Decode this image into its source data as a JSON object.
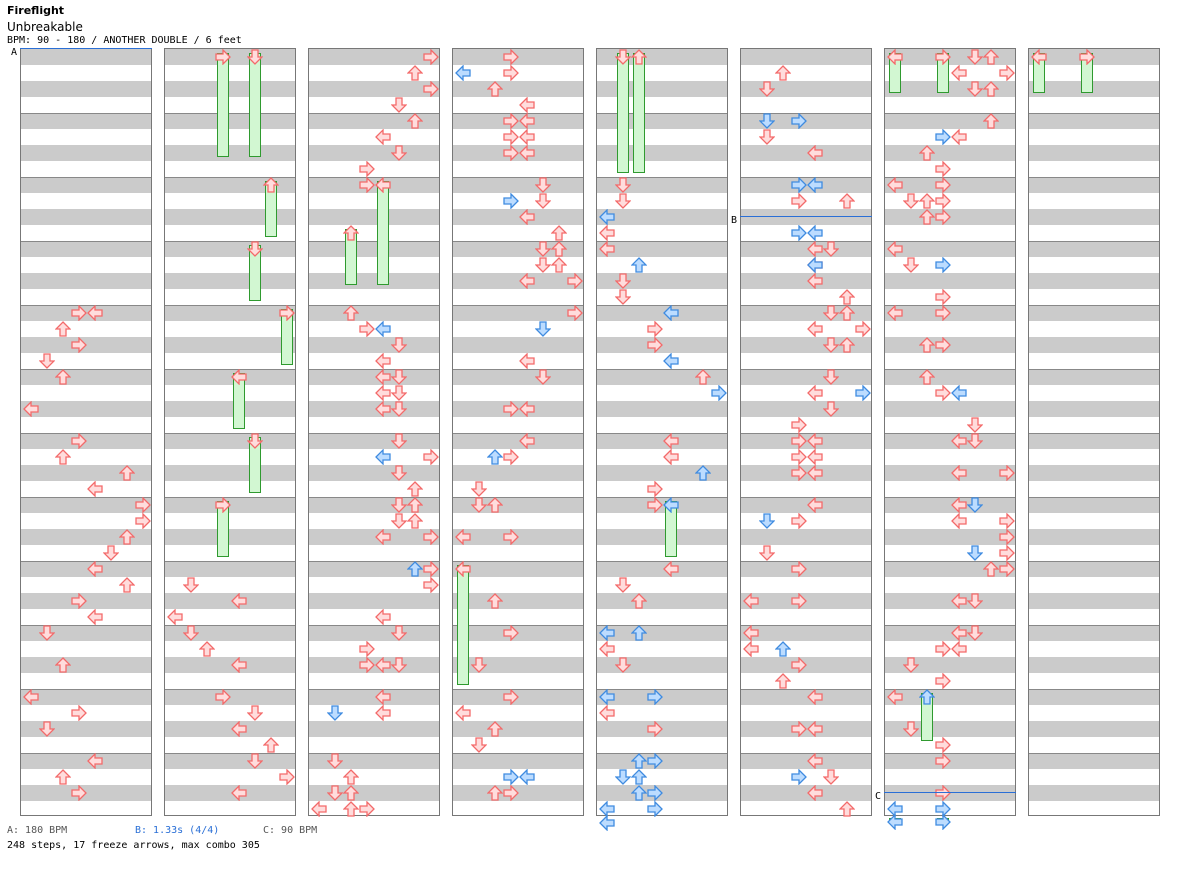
{
  "song": {
    "title": "Fireflight",
    "subtitle": "Unbreakable",
    "info": "BPM: 90 - 180 / ANOTHER DOUBLE / 6 feet"
  },
  "legend": {
    "a": "A: 180 BPM",
    "b": "B: 1.33s (4/4)",
    "c": "C: 90 BPM"
  },
  "stats": "248 steps, 17 freeze arrows, max combo 305",
  "markers": [
    {
      "label": "A",
      "column": 0,
      "beat": 0
    },
    {
      "label": "B",
      "column": 5,
      "beat": 10.5
    },
    {
      "label": "C",
      "column": 6,
      "beat": 46.5
    }
  ],
  "colors": {
    "note": "#f36a6a",
    "note_fill": "#ffdcdc",
    "mine": "#3f8be0",
    "mine_fill": "#bcdcff",
    "hold": "#2f9a2f",
    "hold_fill": "#d2f7d2"
  },
  "columns": [
    {
      "notes": [
        {
          "l": 3,
          "b": 16
        },
        {
          "l": 4,
          "b": 16
        },
        {
          "l": 2,
          "b": 17
        },
        {
          "l": 3,
          "b": 18
        },
        {
          "l": 1,
          "b": 19
        },
        {
          "l": 2,
          "b": 20
        },
        {
          "l": 0,
          "b": 22
        },
        {
          "l": 3,
          "b": 24
        },
        {
          "l": 2,
          "b": 25
        },
        {
          "l": 6,
          "b": 26
        },
        {
          "l": 4,
          "b": 27
        },
        {
          "l": 7,
          "b": 28
        },
        {
          "l": 7,
          "b": 29
        },
        {
          "l": 6,
          "b": 30
        },
        {
          "l": 5,
          "b": 31
        },
        {
          "l": 4,
          "b": 32
        },
        {
          "l": 6,
          "b": 33
        },
        {
          "l": 3,
          "b": 34
        },
        {
          "l": 4,
          "b": 35
        },
        {
          "l": 1,
          "b": 36
        },
        {
          "l": 2,
          "b": 38
        },
        {
          "l": 0,
          "b": 40
        },
        {
          "l": 3,
          "b": 41
        },
        {
          "l": 1,
          "b": 42
        },
        {
          "l": 4,
          "b": 44
        },
        {
          "l": 2,
          "b": 45
        },
        {
          "l": 3,
          "b": 46
        }
      ],
      "holds": []
    },
    {
      "notes": [
        {
          "l": 1,
          "b": 33
        },
        {
          "l": 4,
          "b": 34
        },
        {
          "l": 0,
          "b": 35
        },
        {
          "l": 1,
          "b": 36
        },
        {
          "l": 2,
          "b": 37
        },
        {
          "l": 4,
          "b": 38
        },
        {
          "l": 3,
          "b": 40
        },
        {
          "l": 5,
          "b": 41
        },
        {
          "l": 4,
          "b": 42
        },
        {
          "l": 6,
          "b": 43
        },
        {
          "l": 5,
          "b": 44
        },
        {
          "l": 7,
          "b": 45
        },
        {
          "l": 4,
          "b": 46
        }
      ],
      "holds": [
        {
          "l": 3,
          "b0": 0,
          "b1": 6.5,
          "c": "red"
        },
        {
          "l": 5,
          "b0": 0,
          "b1": 6.5,
          "c": "red"
        },
        {
          "l": 6,
          "b0": 8,
          "b1": 11.5,
          "c": "red"
        },
        {
          "l": 5,
          "b0": 12,
          "b1": 15.5,
          "c": "red"
        },
        {
          "l": 7,
          "b0": 16,
          "b1": 19.5,
          "c": "red"
        },
        {
          "l": 4,
          "b0": 20,
          "b1": 23.5,
          "c": "red"
        },
        {
          "l": 5,
          "b0": 24,
          "b1": 27.5,
          "c": "red"
        },
        {
          "l": 3,
          "b0": 28,
          "b1": 31.5,
          "c": "red"
        }
      ]
    },
    {
      "notes": [
        {
          "l": 7,
          "b": 0
        },
        {
          "l": 6,
          "b": 1
        },
        {
          "l": 7,
          "b": 2
        },
        {
          "l": 5,
          "b": 3
        },
        {
          "l": 6,
          "b": 4
        },
        {
          "l": 4,
          "b": 5
        },
        {
          "l": 5,
          "b": 6
        },
        {
          "l": 3,
          "b": 7
        },
        {
          "l": 3,
          "b": 8
        },
        {
          "l": 2,
          "b": 16
        },
        {
          "l": 3,
          "b": 17
        },
        {
          "l": 5,
          "b": 18
        },
        {
          "l": 4,
          "b": 19
        },
        {
          "l": 4,
          "b": 20
        },
        {
          "l": 5,
          "b": 20
        },
        {
          "l": 4,
          "b": 21
        },
        {
          "l": 5,
          "b": 21
        },
        {
          "l": 4,
          "b": 22
        },
        {
          "l": 5,
          "b": 22
        },
        {
          "l": 5,
          "b": 24
        },
        {
          "l": 7,
          "b": 25
        },
        {
          "l": 5,
          "b": 26
        },
        {
          "l": 6,
          "b": 27
        },
        {
          "l": 5,
          "b": 28
        },
        {
          "l": 6,
          "b": 28
        },
        {
          "l": 5,
          "b": 29
        },
        {
          "l": 6,
          "b": 29
        },
        {
          "l": 4,
          "b": 30
        },
        {
          "l": 7,
          "b": 30
        },
        {
          "l": 7,
          "b": 32
        },
        {
          "l": 7,
          "b": 33
        },
        {
          "l": 4,
          "b": 35
        },
        {
          "l": 5,
          "b": 36
        },
        {
          "l": 3,
          "b": 37
        },
        {
          "l": 3,
          "b": 38
        },
        {
          "l": 4,
          "b": 38
        },
        {
          "l": 5,
          "b": 38
        },
        {
          "l": 4,
          "b": 40
        },
        {
          "l": 4,
          "b": 41
        },
        {
          "l": 1,
          "b": 44
        },
        {
          "l": 2,
          "b": 45
        },
        {
          "l": 1,
          "b": 46
        },
        {
          "l": 2,
          "b": 46
        },
        {
          "l": 2,
          "b": 47
        },
        {
          "l": 0,
          "b": 47
        },
        {
          "l": 3,
          "b": 47
        }
      ],
      "mines": [
        {
          "l": 4,
          "b": 17
        },
        {
          "l": 4,
          "b": 25
        },
        {
          "l": 6,
          "b": 32
        },
        {
          "l": 1,
          "b": 41
        }
      ],
      "holds": [
        {
          "l": 4,
          "b0": 8,
          "b1": 14.5,
          "c": "red"
        },
        {
          "l": 2,
          "b0": 11,
          "b1": 14.5,
          "c": "red"
        }
      ]
    },
    {
      "notes": [
        {
          "l": 3,
          "b": 0
        },
        {
          "l": 3,
          "b": 1
        },
        {
          "l": 2,
          "b": 2
        },
        {
          "l": 4,
          "b": 3
        },
        {
          "l": 3,
          "b": 4
        },
        {
          "l": 4,
          "b": 4
        },
        {
          "l": 3,
          "b": 5
        },
        {
          "l": 4,
          "b": 5
        },
        {
          "l": 3,
          "b": 6
        },
        {
          "l": 4,
          "b": 6
        },
        {
          "l": 5,
          "b": 8
        },
        {
          "l": 5,
          "b": 9
        },
        {
          "l": 4,
          "b": 10
        },
        {
          "l": 6,
          "b": 11
        },
        {
          "l": 5,
          "b": 12
        },
        {
          "l": 6,
          "b": 12
        },
        {
          "l": 5,
          "b": 13
        },
        {
          "l": 6,
          "b": 13
        },
        {
          "l": 4,
          "b": 14
        },
        {
          "l": 7,
          "b": 14
        },
        {
          "l": 7,
          "b": 16
        },
        {
          "l": 4,
          "b": 19
        },
        {
          "l": 5,
          "b": 20
        },
        {
          "l": 3,
          "b": 22
        },
        {
          "l": 4,
          "b": 22
        },
        {
          "l": 4,
          "b": 24
        },
        {
          "l": 3,
          "b": 25
        },
        {
          "l": 1,
          "b": 27
        },
        {
          "l": 1,
          "b": 28
        },
        {
          "l": 2,
          "b": 28
        },
        {
          "l": 0,
          "b": 30
        },
        {
          "l": 3,
          "b": 30
        },
        {
          "l": 2,
          "b": 34
        },
        {
          "l": 3,
          "b": 36
        },
        {
          "l": 1,
          "b": 38
        },
        {
          "l": 3,
          "b": 40
        },
        {
          "l": 0,
          "b": 41
        },
        {
          "l": 2,
          "b": 42
        },
        {
          "l": 1,
          "b": 43
        },
        {
          "l": 2,
          "b": 46
        },
        {
          "l": 3,
          "b": 46
        }
      ],
      "mines": [
        {
          "l": 0,
          "b": 1
        },
        {
          "l": 3,
          "b": 9
        },
        {
          "l": 5,
          "b": 17
        },
        {
          "l": 2,
          "b": 25
        },
        {
          "l": 3,
          "b": 45
        },
        {
          "l": 4,
          "b": 45
        }
      ],
      "holds": [
        {
          "l": 0,
          "b0": 32,
          "b1": 39.5,
          "c": "red"
        }
      ]
    },
    {
      "notes": [
        {
          "l": 1,
          "b": 8
        },
        {
          "l": 1,
          "b": 9
        },
        {
          "l": 0,
          "b": 11
        },
        {
          "l": 0,
          "b": 12
        },
        {
          "l": 1,
          "b": 14
        },
        {
          "l": 1,
          "b": 15
        },
        {
          "l": 3,
          "b": 17
        },
        {
          "l": 3,
          "b": 18
        },
        {
          "l": 6,
          "b": 20
        },
        {
          "l": 4,
          "b": 24
        },
        {
          "l": 4,
          "b": 25
        },
        {
          "l": 3,
          "b": 27
        },
        {
          "l": 3,
          "b": 28
        },
        {
          "l": 4,
          "b": 32
        },
        {
          "l": 1,
          "b": 33
        },
        {
          "l": 2,
          "b": 34
        },
        {
          "l": 0,
          "b": 37
        },
        {
          "l": 1,
          "b": 38
        },
        {
          "l": 0,
          "b": 41
        },
        {
          "l": 3,
          "b": 42
        }
      ],
      "mines": [
        {
          "l": 0,
          "b": 10
        },
        {
          "l": 2,
          "b": 13
        },
        {
          "l": 4,
          "b": 16
        },
        {
          "l": 4,
          "b": 19
        },
        {
          "l": 7,
          "b": 21
        },
        {
          "l": 6,
          "b": 26
        },
        {
          "l": 0,
          "b": 36
        },
        {
          "l": 2,
          "b": 36
        },
        {
          "l": 0,
          "b": 40
        },
        {
          "l": 3,
          "b": 40
        },
        {
          "l": 2,
          "b": 44
        },
        {
          "l": 3,
          "b": 44
        },
        {
          "l": 1,
          "b": 45
        },
        {
          "l": 2,
          "b": 45
        },
        {
          "l": 2,
          "b": 46
        },
        {
          "l": 3,
          "b": 46
        },
        {
          "l": 0,
          "b": 47
        },
        {
          "l": 3,
          "b": 47
        },
        {
          "l": 0,
          "b": 47.9
        }
      ],
      "holds": [
        {
          "l": 1,
          "b0": 0,
          "b1": 7.5,
          "c": "red"
        },
        {
          "l": 2,
          "b0": 0,
          "b1": 7.5,
          "c": "red"
        },
        {
          "l": 4,
          "b0": 28,
          "b1": 31.5,
          "c": "blue"
        }
      ]
    },
    {
      "notes": [
        {
          "l": 2,
          "b": 1
        },
        {
          "l": 1,
          "b": 2
        },
        {
          "l": 1,
          "b": 5
        },
        {
          "l": 4,
          "b": 6
        },
        {
          "l": 3,
          "b": 9
        },
        {
          "l": 6,
          "b": 9
        },
        {
          "l": 4,
          "b": 12
        },
        {
          "l": 5,
          "b": 12
        },
        {
          "l": 4,
          "b": 13
        },
        {
          "l": 4,
          "b": 14
        },
        {
          "l": 6,
          "b": 15
        },
        {
          "l": 5,
          "b": 16
        },
        {
          "l": 6,
          "b": 16
        },
        {
          "l": 4,
          "b": 17
        },
        {
          "l": 7,
          "b": 17
        },
        {
          "l": 5,
          "b": 18
        },
        {
          "l": 6,
          "b": 18
        },
        {
          "l": 5,
          "b": 20
        },
        {
          "l": 4,
          "b": 21
        },
        {
          "l": 5,
          "b": 22
        },
        {
          "l": 3,
          "b": 23
        },
        {
          "l": 3,
          "b": 24
        },
        {
          "l": 4,
          "b": 24
        },
        {
          "l": 3,
          "b": 25
        },
        {
          "l": 4,
          "b": 25
        },
        {
          "l": 3,
          "b": 26
        },
        {
          "l": 4,
          "b": 26
        },
        {
          "l": 4,
          "b": 28
        },
        {
          "l": 3,
          "b": 29
        },
        {
          "l": 1,
          "b": 31
        },
        {
          "l": 3,
          "b": 32
        },
        {
          "l": 0,
          "b": 34
        },
        {
          "l": 3,
          "b": 34
        },
        {
          "l": 0,
          "b": 36
        },
        {
          "l": 0,
          "b": 37
        },
        {
          "l": 3,
          "b": 38
        },
        {
          "l": 2,
          "b": 39
        },
        {
          "l": 4,
          "b": 40
        },
        {
          "l": 3,
          "b": 42
        },
        {
          "l": 4,
          "b": 42
        },
        {
          "l": 4,
          "b": 44
        },
        {
          "l": 5,
          "b": 45
        },
        {
          "l": 4,
          "b": 46
        },
        {
          "l": 6,
          "b": 47
        }
      ],
      "mines": [
        {
          "l": 1,
          "b": 4
        },
        {
          "l": 3,
          "b": 4
        },
        {
          "l": 3,
          "b": 8
        },
        {
          "l": 4,
          "b": 8
        },
        {
          "l": 3,
          "b": 11
        },
        {
          "l": 4,
          "b": 11
        },
        {
          "l": 4,
          "b": 13
        },
        {
          "l": 7,
          "b": 21
        },
        {
          "l": 1,
          "b": 29
        },
        {
          "l": 2,
          "b": 37
        },
        {
          "l": 3,
          "b": 45
        }
      ],
      "holds": []
    },
    {
      "notes": [
        {
          "l": 5,
          "b": 0
        },
        {
          "l": 6,
          "b": 0
        },
        {
          "l": 4,
          "b": 1
        },
        {
          "l": 7,
          "b": 1
        },
        {
          "l": 5,
          "b": 2
        },
        {
          "l": 6,
          "b": 2
        },
        {
          "l": 6,
          "b": 4
        },
        {
          "l": 4,
          "b": 5
        },
        {
          "l": 2,
          "b": 6
        },
        {
          "l": 3,
          "b": 7
        },
        {
          "l": 3,
          "b": 8
        },
        {
          "l": 0,
          "b": 8
        },
        {
          "l": 1,
          "b": 9
        },
        {
          "l": 2,
          "b": 9
        },
        {
          "l": 3,
          "b": 9
        },
        {
          "l": 2,
          "b": 10
        },
        {
          "l": 3,
          "b": 10
        },
        {
          "l": 0,
          "b": 12
        },
        {
          "l": 1,
          "b": 13
        },
        {
          "l": 3,
          "b": 15
        },
        {
          "l": 3,
          "b": 16
        },
        {
          "l": 0,
          "b": 16
        },
        {
          "l": 3,
          "b": 18
        },
        {
          "l": 2,
          "b": 18
        },
        {
          "l": 2,
          "b": 20
        },
        {
          "l": 3,
          "b": 21
        },
        {
          "l": 5,
          "b": 23
        },
        {
          "l": 4,
          "b": 24
        },
        {
          "l": 5,
          "b": 24
        },
        {
          "l": 4,
          "b": 26
        },
        {
          "l": 7,
          "b": 26
        },
        {
          "l": 4,
          "b": 28
        },
        {
          "l": 4,
          "b": 29
        },
        {
          "l": 7,
          "b": 29
        },
        {
          "l": 7,
          "b": 30
        },
        {
          "l": 7,
          "b": 31
        },
        {
          "l": 6,
          "b": 32
        },
        {
          "l": 7,
          "b": 32
        },
        {
          "l": 4,
          "b": 34
        },
        {
          "l": 5,
          "b": 34
        },
        {
          "l": 4,
          "b": 36
        },
        {
          "l": 5,
          "b": 36
        },
        {
          "l": 3,
          "b": 37
        },
        {
          "l": 4,
          "b": 37
        },
        {
          "l": 1,
          "b": 38
        },
        {
          "l": 3,
          "b": 39
        },
        {
          "l": 0,
          "b": 40
        },
        {
          "l": 1,
          "b": 42
        },
        {
          "l": 3,
          "b": 43
        },
        {
          "l": 3,
          "b": 44
        },
        {
          "l": 3,
          "b": 46
        }
      ],
      "mines": [
        {
          "l": 3,
          "b": 5
        },
        {
          "l": 3,
          "b": 13
        },
        {
          "l": 4,
          "b": 21
        },
        {
          "l": 5,
          "b": 28
        },
        {
          "l": 5,
          "b": 31
        },
        {
          "l": 0,
          "b": 47
        },
        {
          "l": 3,
          "b": 47
        }
      ],
      "holds": [
        {
          "l": 0,
          "b0": 0,
          "b1": 2.5,
          "c": "red"
        },
        {
          "l": 3,
          "b0": 0,
          "b1": 2.5,
          "c": "red"
        },
        {
          "l": 2,
          "b0": 40,
          "b1": 43,
          "c": "blue"
        },
        {
          "l": 0,
          "b0": 47.8,
          "b1": 48,
          "c": "blue"
        },
        {
          "l": 3,
          "b0": 47.8,
          "b1": 48,
          "c": "blue"
        }
      ]
    },
    {
      "notes": [],
      "holds": [
        {
          "l": 0,
          "b0": 0,
          "b1": 2.5,
          "c": "red"
        },
        {
          "l": 3,
          "b0": 0,
          "b1": 2.5,
          "c": "red"
        }
      ]
    }
  ]
}
